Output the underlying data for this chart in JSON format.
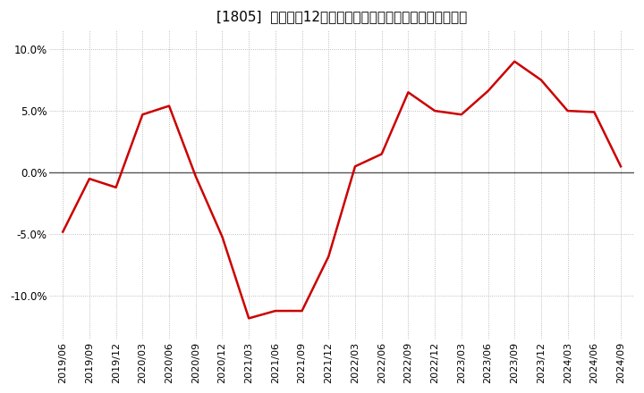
{
  "title": "[1805]  売上高の12か月移動合計の対前年同期増減率の推移",
  "line_color": "#cc0000",
  "background_color": "#ffffff",
  "xlabels": [
    "2019/06",
    "2019/09",
    "2019/12",
    "2020/03",
    "2020/06",
    "2020/09",
    "2020/12",
    "2021/03",
    "2021/06",
    "2021/09",
    "2021/12",
    "2022/03",
    "2022/06",
    "2022/09",
    "2022/12",
    "2023/03",
    "2023/06",
    "2023/09",
    "2023/12",
    "2024/03",
    "2024/06",
    "2024/09"
  ],
  "yvalues": [
    -0.048,
    -0.005,
    -0.012,
    0.047,
    0.054,
    -0.003,
    -0.052,
    -0.118,
    -0.112,
    -0.112,
    -0.068,
    0.005,
    0.015,
    0.065,
    0.05,
    0.047,
    0.066,
    0.09,
    0.075,
    0.05,
    0.049,
    0.005
  ],
  "ylim": [
    -0.135,
    0.115
  ],
  "yticks": [
    -0.1,
    -0.05,
    0.0,
    0.05,
    0.1
  ],
  "ytick_labels": [
    "-10.0%",
    "-5.0%",
    "0.0%",
    "5.0%",
    "10.0%"
  ],
  "grid_color": "#aaaaaa",
  "zero_line_color": "#555555",
  "title_fontsize": 11,
  "tick_fontsize": 8,
  "ytick_fontsize": 8.5
}
